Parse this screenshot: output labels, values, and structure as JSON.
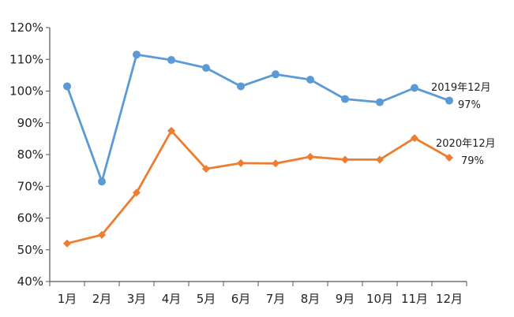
{
  "chart_data": {
    "type": "line",
    "title": "",
    "xlabel": "",
    "ylabel": "",
    "categories": [
      "1月",
      "2月",
      "3月",
      "4月",
      "5月",
      "6月",
      "7月",
      "8月",
      "9月",
      "10月",
      "11月",
      "12月"
    ],
    "y_ticks": [
      "40%",
      "50%",
      "60%",
      "70%",
      "80%",
      "90%",
      "100%",
      "110%",
      "120%"
    ],
    "ylim": [
      40,
      120
    ],
    "grid": false,
    "legend": "none",
    "series": [
      {
        "color": "#5B9BD5",
        "marker": "circle",
        "values": [
          101.5,
          71.5,
          111.5,
          109.8,
          107.3,
          101.5,
          105.3,
          103.6,
          97.5,
          96.5,
          101.0,
          97.0
        ]
      },
      {
        "color": "#ED7D31",
        "marker": "diamond",
        "values": [
          52.0,
          54.7,
          68.0,
          87.5,
          75.5,
          77.3,
          77.2,
          79.3,
          78.4,
          78.4,
          85.2,
          79.0
        ]
      }
    ],
    "annotations": [
      {
        "series": 0,
        "line1": "2019年12月",
        "line2": "97%"
      },
      {
        "series": 1,
        "line1": "2020年12月",
        "line2": "79%"
      }
    ]
  }
}
